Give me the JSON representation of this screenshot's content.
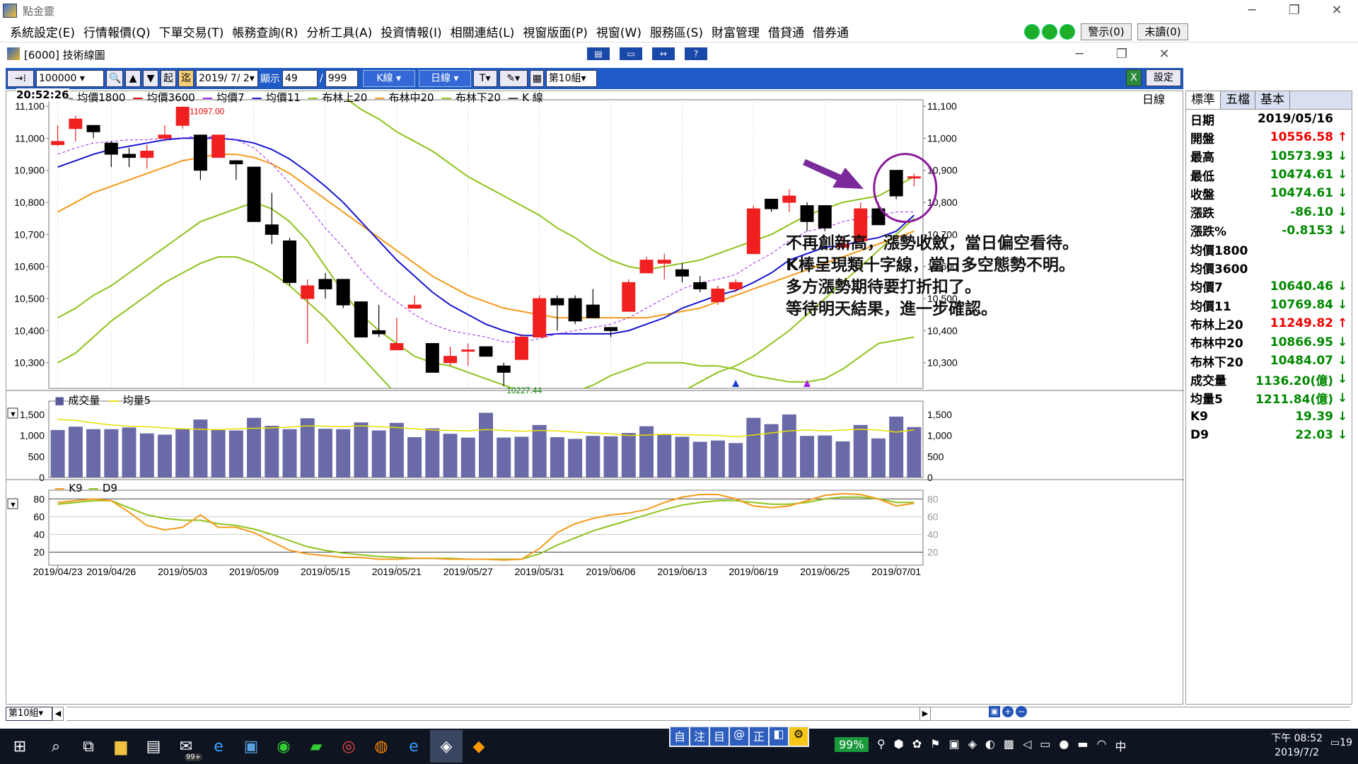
{
  "app": {
    "title": "點金靈"
  },
  "menu": [
    "系統設定(E)",
    "行情報價(Q)",
    "下單交易(T)",
    "帳務查詢(R)",
    "分析工具(A)",
    "投資情報(I)",
    "相關連結(L)",
    "視窗版面(P)",
    "視窗(W)",
    "服務區(S)",
    "財富管理",
    "借貸通",
    "借券通"
  ],
  "alert_label": "警示(0)",
  "unread_label": "未讀(0)",
  "child": {
    "title": "[6000] 技術線圖"
  },
  "toolbar": {
    "symbol": "100000",
    "start": "起",
    "end": "迄",
    "date": "2019/ 7/ 2",
    "display_label": "顯示",
    "display_count": "49",
    "total": "999",
    "kline": "K線",
    "period": "日線",
    "text_tool": "T",
    "group": "第10組",
    "settings": "設定"
  },
  "time": "20:52:26",
  "legend": [
    {
      "label": "均價1800",
      "color": "#8a8a8a"
    },
    {
      "label": "均價3600",
      "color": "#e00000"
    },
    {
      "label": "均價7",
      "color": "#a020f0"
    },
    {
      "label": "均價11",
      "color": "#1515d0"
    },
    {
      "label": "布林上20",
      "color": "#8ec31a"
    },
    {
      "label": "布林中20",
      "color": "#f59a1a"
    },
    {
      "label": "布林下20",
      "color": "#8ec31a"
    },
    {
      "label": "K 線",
      "color": "#444"
    }
  ],
  "period_label": "日線",
  "annotation": [
    "不再創新高，漲勢收斂，當日偏空看待。",
    "K棒呈現類十字線，當日多空態勢不明。",
    "多方漲勢期待要打折扣了。",
    "等待明天結果，進一步確認。"
  ],
  "price_high_label": "11097.00",
  "price_low_label": "10227.44",
  "vol_legend": {
    "vol": "成交量",
    "avg": "均量5"
  },
  "kd_legend": {
    "k": "K9",
    "d": "D9"
  },
  "chart_data": {
    "type": "candlestick",
    "price_ticks": [
      "11,100",
      "11,000",
      "10,900",
      "10,800",
      "10,700",
      "10,600",
      "10,500",
      "10,400",
      "10,300"
    ],
    "volume_ticks": [
      "1,500",
      "1,000",
      "500",
      "0"
    ],
    "kd_ticks": [
      "80",
      "60",
      "40",
      "20"
    ],
    "date_labels": [
      "2019/04/23",
      "2019/04/26",
      "2019/05/03",
      "2019/05/09",
      "2019/05/15",
      "2019/05/21",
      "2019/05/27",
      "2019/05/31",
      "2019/06/06",
      "2019/06/13",
      "2019/06/19",
      "2019/06/25",
      "2019/07/01"
    ],
    "date_label_index": [
      0,
      3,
      7,
      11,
      15,
      19,
      23,
      27,
      31,
      35,
      39,
      43,
      47
    ],
    "candles": [
      [
        10980,
        10990,
        11040,
        10975
      ],
      [
        11030,
        11060,
        11070,
        10990
      ],
      [
        11040,
        11020,
        11040,
        11000
      ],
      [
        10985,
        10950,
        10990,
        10910
      ],
      [
        10950,
        10940,
        10970,
        10910
      ],
      [
        10940,
        10960,
        10980,
        10905
      ],
      [
        11000,
        11010,
        11040,
        10990
      ],
      [
        11040,
        11097,
        11097,
        11030
      ],
      [
        11010,
        10900,
        11010,
        10870
      ],
      [
        10940,
        11010,
        11010,
        10940
      ],
      [
        10930,
        10920,
        10930,
        10870
      ],
      [
        10910,
        10740,
        10910,
        10740
      ],
      [
        10730,
        10700,
        10830,
        10670
      ],
      [
        10680,
        10550,
        10690,
        10540
      ],
      [
        10500,
        10540,
        10560,
        10360
      ],
      [
        10560,
        10530,
        10580,
        10500
      ],
      [
        10560,
        10480,
        10560,
        10470
      ],
      [
        10490,
        10380,
        10490,
        10380
      ],
      [
        10400,
        10390,
        10480,
        10380
      ],
      [
        10340,
        10360,
        10440,
        10340
      ],
      [
        10470,
        10480,
        10510,
        10470
      ],
      [
        10360,
        10270,
        10360,
        10270
      ],
      [
        10300,
        10320,
        10350,
        10290
      ],
      [
        10340,
        10340,
        10360,
        10290
      ],
      [
        10350,
        10320,
        10350,
        10320
      ],
      [
        10290,
        10270,
        10300,
        10227
      ],
      [
        10310,
        10380,
        10390,
        10310
      ],
      [
        10380,
        10500,
        10510,
        10380
      ],
      [
        10500,
        10480,
        10510,
        10400
      ],
      [
        10500,
        10430,
        10510,
        10420
      ],
      [
        10480,
        10440,
        10530,
        10440
      ],
      [
        10410,
        10400,
        10410,
        10380
      ],
      [
        10460,
        10550,
        10560,
        10460
      ],
      [
        10580,
        10620,
        10630,
        10580
      ],
      [
        10610,
        10620,
        10640,
        10560
      ],
      [
        10590,
        10570,
        10610,
        10550
      ],
      [
        10550,
        10530,
        10570,
        10520
      ],
      [
        10490,
        10530,
        10540,
        10480
      ],
      [
        10530,
        10550,
        10560,
        10520
      ],
      [
        10640,
        10780,
        10790,
        10640
      ],
      [
        10810,
        10780,
        10810,
        10770
      ],
      [
        10800,
        10820,
        10840,
        10770
      ],
      [
        10790,
        10740,
        10800,
        10710
      ],
      [
        10790,
        10720,
        10790,
        10710
      ],
      [
        10660,
        10670,
        10690,
        10660
      ],
      [
        10680,
        10780,
        10800,
        10680
      ],
      [
        10780,
        10730,
        10800,
        10730
      ],
      [
        10900,
        10820,
        10900,
        10810
      ],
      [
        10880,
        10880,
        10890,
        10850
      ]
    ],
    "ma7": [
      10950,
      10970,
      10985,
      10990,
      10995,
      10995,
      11000,
      11000,
      11010,
      11000,
      10995,
      10970,
      10920,
      10860,
      10790,
      10720,
      10660,
      10590,
      10530,
      10490,
      10450,
      10420,
      10400,
      10390,
      10380,
      10365,
      10365,
      10375,
      10390,
      10400,
      10410,
      10420,
      10440,
      10470,
      10500,
      10530,
      10550,
      10560,
      10575,
      10610,
      10640,
      10680,
      10710,
      10720,
      10740,
      10750,
      10760,
      10770,
      10770
    ],
    "ma11": [
      10910,
      10930,
      10950,
      10965,
      10975,
      10985,
      10995,
      11000,
      11000,
      11000,
      10995,
      10985,
      10965,
      10935,
      10895,
      10850,
      10800,
      10740,
      10680,
      10620,
      10570,
      10520,
      10480,
      10450,
      10420,
      10400,
      10385,
      10385,
      10390,
      10390,
      10390,
      10390,
      10400,
      10420,
      10440,
      10470,
      10490,
      10510,
      10525,
      10550,
      10580,
      10620,
      10640,
      10660,
      10665,
      10680,
      10690,
      10710,
      10760
    ],
    "bb_up": [
      10440,
      10470,
      10510,
      10540,
      10580,
      10620,
      10660,
      10700,
      10740,
      10760,
      10780,
      10800,
      10780,
      10740,
      10680,
      10600,
      10520,
      10450,
      10400,
      10360,
      10320,
      10300,
      10290,
      10270,
      10250,
      10230,
      10210,
      10190,
      10190,
      10210,
      10230,
      10260,
      10280,
      10300,
      10300,
      10300,
      10290,
      10290,
      10280,
      10260,
      10250,
      10240,
      10240,
      10250,
      10280,
      10320,
      10360,
      10370,
      10380
    ],
    "bb_mid": [
      10770,
      10800,
      10830,
      10850,
      10870,
      10890,
      10910,
      10930,
      10940,
      10950,
      10950,
      10940,
      10920,
      10890,
      10850,
      10810,
      10770,
      10730,
      10690,
      10650,
      10610,
      10570,
      10540,
      10510,
      10490,
      10470,
      10460,
      10450,
      10440,
      10440,
      10440,
      10440,
      10440,
      10440,
      10450,
      10460,
      10470,
      10490,
      10510,
      10530,
      10550,
      10570,
      10590,
      10610,
      10630,
      10650,
      10670,
      10690,
      10710
    ],
    "bb_lo": [
      10300,
      10330,
      10380,
      10430,
      10470,
      10510,
      10550,
      10580,
      10610,
      10630,
      10630,
      10610,
      10580,
      10540,
      10490,
      10440,
      10380,
      10320,
      10260,
      10200,
      10140,
      10100,
      10060,
      10030,
      10010,
      9990,
      9980,
      9970,
      9980,
      9990,
      10000,
      10030,
      10080,
      10130,
      10170,
      10210,
      10240,
      10270,
      10290,
      10320,
      10360,
      10400,
      10450,
      10500,
      10550,
      10600,
      10650,
      10700,
      10750
    ],
    "bb_top": [
      11300,
      11300,
      11300,
      11300,
      11300,
      11300,
      11300,
      11300,
      11300,
      11280,
      11270,
      11260,
      11250,
      11230,
      11200,
      11170,
      11130,
      11090,
      11060,
      11020,
      10990,
      10960,
      10920,
      10880,
      10850,
      10820,
      10790,
      10760,
      10720,
      10690,
      10650,
      10620,
      10600,
      10590,
      10600,
      10610,
      10620,
      10640,
      10660,
      10680,
      10700,
      10730,
      10760,
      10780,
      10800,
      10810,
      10820,
      10850,
      10880
    ],
    "volume": [
      1130,
      1210,
      1150,
      1150,
      1190,
      1050,
      1020,
      1150,
      1380,
      1130,
      1120,
      1420,
      1230,
      1150,
      1410,
      1160,
      1150,
      1310,
      1120,
      1300,
      960,
      1170,
      1040,
      950,
      1540,
      950,
      970,
      1250,
      960,
      920,
      990,
      980,
      1060,
      1220,
      1030,
      970,
      850,
      880,
      820,
      1420,
      1270,
      1500,
      990,
      1000,
      860,
      1250,
      930,
      1450,
      1200
    ],
    "vol_avg": [
      1380,
      1360,
      1300,
      1250,
      1220,
      1210,
      1180,
      1160,
      1150,
      1140,
      1160,
      1170,
      1180,
      1200,
      1230,
      1220,
      1210,
      1230,
      1210,
      1190,
      1160,
      1130,
      1120,
      1110,
      1140,
      1120,
      1100,
      1120,
      1110,
      1080,
      1060,
      1040,
      1000,
      1010,
      1030,
      1020,
      1010,
      1000,
      970,
      1010,
      1060,
      1110,
      1130,
      1110,
      1130,
      1150,
      1130,
      1080,
      1130
    ],
    "k9": [
      76,
      78,
      80,
      78,
      65,
      50,
      45,
      48,
      62,
      48,
      48,
      42,
      32,
      22,
      18,
      16,
      14,
      14,
      12,
      12,
      13,
      13,
      12,
      12,
      12,
      11,
      12,
      24,
      42,
      52,
      58,
      62,
      64,
      68,
      76,
      82,
      85,
      85,
      80,
      72,
      70,
      72,
      78,
      84,
      86,
      85,
      80,
      72,
      75
    ],
    "d9": [
      74,
      76,
      78,
      78,
      70,
      62,
      58,
      56,
      56,
      52,
      50,
      46,
      40,
      33,
      26,
      22,
      19,
      17,
      15,
      14,
      13,
      13,
      13,
      12,
      12,
      12,
      12,
      18,
      28,
      36,
      44,
      50,
      56,
      62,
      68,
      73,
      76,
      78,
      78,
      76,
      74,
      74,
      76,
      80,
      82,
      82,
      80,
      76,
      76
    ]
  },
  "quote": {
    "tabs": [
      "標準",
      "五檔",
      "基本"
    ],
    "rows": [
      {
        "label": "日期",
        "value": "2019/05/16",
        "color": "#000",
        "arrow": ""
      },
      {
        "label": "開盤",
        "value": "10556.58",
        "color": "#e00",
        "arrow": "↑"
      },
      {
        "label": "最高",
        "value": "10573.93",
        "color": "#080",
        "arrow": "↓"
      },
      {
        "label": "最低",
        "value": "10474.61",
        "color": "#080",
        "arrow": "↓"
      },
      {
        "label": "收盤",
        "value": "10474.61",
        "color": "#080",
        "arrow": "↓"
      },
      {
        "label": "漲跌",
        "value": "-86.10",
        "color": "#080",
        "arrow": "↓"
      },
      {
        "label": "漲跌%",
        "value": "-0.8153",
        "color": "#080",
        "arrow": "↓"
      },
      {
        "label": "均價1800",
        "value": "",
        "color": "#000",
        "arrow": ""
      },
      {
        "label": "均價3600",
        "value": "",
        "color": "#000",
        "arrow": ""
      },
      {
        "label": "均價7",
        "value": "10640.46",
        "color": "#080",
        "arrow": "↓"
      },
      {
        "label": "均價11",
        "value": "10769.84",
        "color": "#080",
        "arrow": "↓"
      },
      {
        "label": "布林上20",
        "value": "11249.82",
        "color": "#e00",
        "arrow": "↑"
      },
      {
        "label": "布林中20",
        "value": "10866.95",
        "color": "#080",
        "arrow": "↓"
      },
      {
        "label": "布林下20",
        "value": "10484.07",
        "color": "#080",
        "arrow": "↓"
      },
      {
        "label": "成交量",
        "value": "1136.20(億)",
        "color": "#080",
        "arrow": "↓"
      },
      {
        "label": "均量5",
        "value": "1211.84(億)",
        "color": "#080",
        "arrow": "↓"
      },
      {
        "label": "K9",
        "value": "19.39",
        "color": "#080",
        "arrow": "↓"
      },
      {
        "label": "D9",
        "value": "22.03",
        "color": "#080",
        "arrow": "↓"
      }
    ]
  },
  "bottom_group": "第10組",
  "taskbar": {
    "battery": "99%",
    "time": "下午 08:52",
    "date": "2019/7/2",
    "ime": "中",
    "badge": "99+",
    "notif": "19"
  }
}
